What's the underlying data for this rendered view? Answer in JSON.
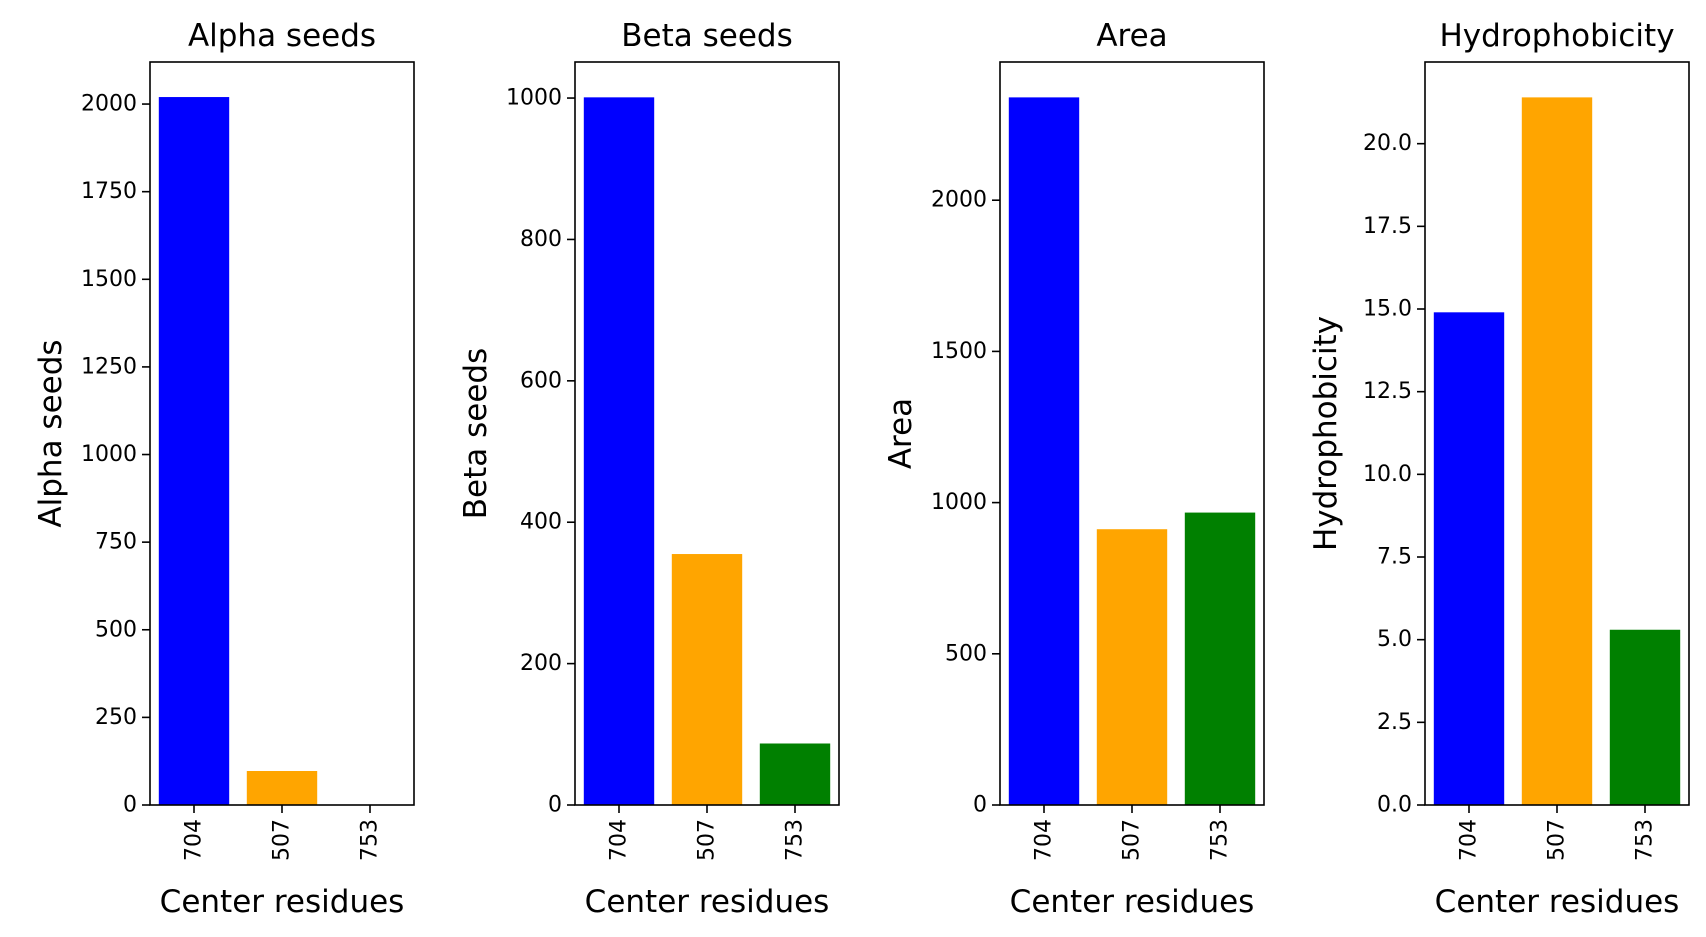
{
  "chart_data": [
    {
      "type": "bar",
      "title": "Alpha seeds",
      "xlabel": "Center residues",
      "ylabel": "Alpha seeds",
      "categories": [
        "704",
        "507",
        "753"
      ],
      "values": [
        2020,
        97,
        0
      ],
      "colors": [
        "#0000ff",
        "#ffa500",
        "#008000"
      ],
      "ylim": [
        0,
        2120
      ],
      "yticks": [
        0,
        250,
        500,
        750,
        1000,
        1250,
        1500,
        1750,
        2000
      ],
      "ytick_labels": [
        "0",
        "250",
        "500",
        "750",
        "1000",
        "1250",
        "1500",
        "1750",
        "2000"
      ],
      "grid": false
    },
    {
      "type": "bar",
      "title": "Beta seeds",
      "xlabel": "Center residues",
      "ylabel": "Beta seeds",
      "categories": [
        "704",
        "507",
        "753"
      ],
      "values": [
        1001,
        355,
        87
      ],
      "colors": [
        "#0000ff",
        "#ffa500",
        "#008000"
      ],
      "ylim": [
        0,
        1051
      ],
      "yticks": [
        0,
        200,
        400,
        600,
        800,
        1000
      ],
      "ytick_labels": [
        "0",
        "200",
        "400",
        "600",
        "800",
        "1000"
      ],
      "grid": false
    },
    {
      "type": "bar",
      "title": "Area",
      "xlabel": "Center residues",
      "ylabel": "Area",
      "categories": [
        "704",
        "507",
        "753"
      ],
      "values": [
        2340,
        912,
        967
      ],
      "colors": [
        "#0000ff",
        "#ffa500",
        "#008000"
      ],
      "ylim": [
        0,
        2457
      ],
      "yticks": [
        0,
        500,
        1000,
        1500,
        2000
      ],
      "ytick_labels": [
        "0",
        "500",
        "1000",
        "1500",
        "2000"
      ],
      "grid": false
    },
    {
      "type": "bar",
      "title": "Hydrophobicity",
      "xlabel": "Center residues",
      "ylabel": "Hydrophobicity",
      "categories": [
        "704",
        "507",
        "753"
      ],
      "values": [
        14.9,
        21.4,
        5.3
      ],
      "colors": [
        "#0000ff",
        "#ffa500",
        "#008000"
      ],
      "ylim": [
        0,
        22.47
      ],
      "yticks": [
        0,
        2.5,
        5,
        7.5,
        10,
        12.5,
        15,
        17.5,
        20
      ],
      "ytick_labels": [
        "0.0",
        "2.5",
        "5.0",
        "7.5",
        "10.0",
        "12.5",
        "15.0",
        "17.5",
        "20.0"
      ],
      "grid": false
    }
  ]
}
